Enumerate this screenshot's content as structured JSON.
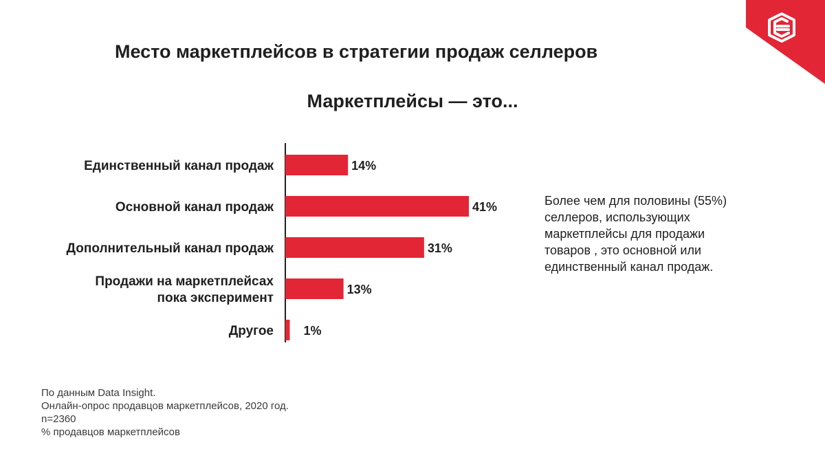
{
  "header": {
    "title": "Место маркетплейсов в стратегии продаж селлеров",
    "subtitle": "Маркетплейсы — это..."
  },
  "logo": {
    "icon": "data-insight-logo-icon",
    "background_color": "#e32636",
    "icon_color": "#ffffff"
  },
  "colors": {
    "bar": "#e32636",
    "axis": "#1f1f1f",
    "text": "#1f1f1f"
  },
  "chart_data": {
    "type": "bar",
    "orientation": "horizontal",
    "title": "Маркетплейсы — это...",
    "xlabel": "",
    "ylabel": "",
    "unit": "%",
    "xlim": [
      0,
      41
    ],
    "grid": false,
    "categories": [
      [
        "Единственный канал продаж"
      ],
      [
        "Основной канал продаж"
      ],
      [
        "Дополнительный канал продаж"
      ],
      [
        "Продажи на маркетплейсах",
        "пока эксперимент"
      ],
      [
        "Другое"
      ]
    ],
    "values": [
      14,
      41,
      31,
      13,
      1
    ],
    "value_labels": [
      "14%",
      "41%",
      "31%",
      "13%",
      "1%"
    ]
  },
  "note": {
    "lines": [
      "Более чем для половины (55%)",
      "селлеров,  использующих",
      "маркетплейсы для продажи",
      "товаров , это основной или",
      "единственный канал продаж."
    ]
  },
  "source": {
    "lines": [
      "По данным Data Insight.",
      "Онлайн-опрос продавцов маркетплейсов, 2020 год.",
      "n=2360",
      "% продавцов маркетплейсов"
    ]
  }
}
